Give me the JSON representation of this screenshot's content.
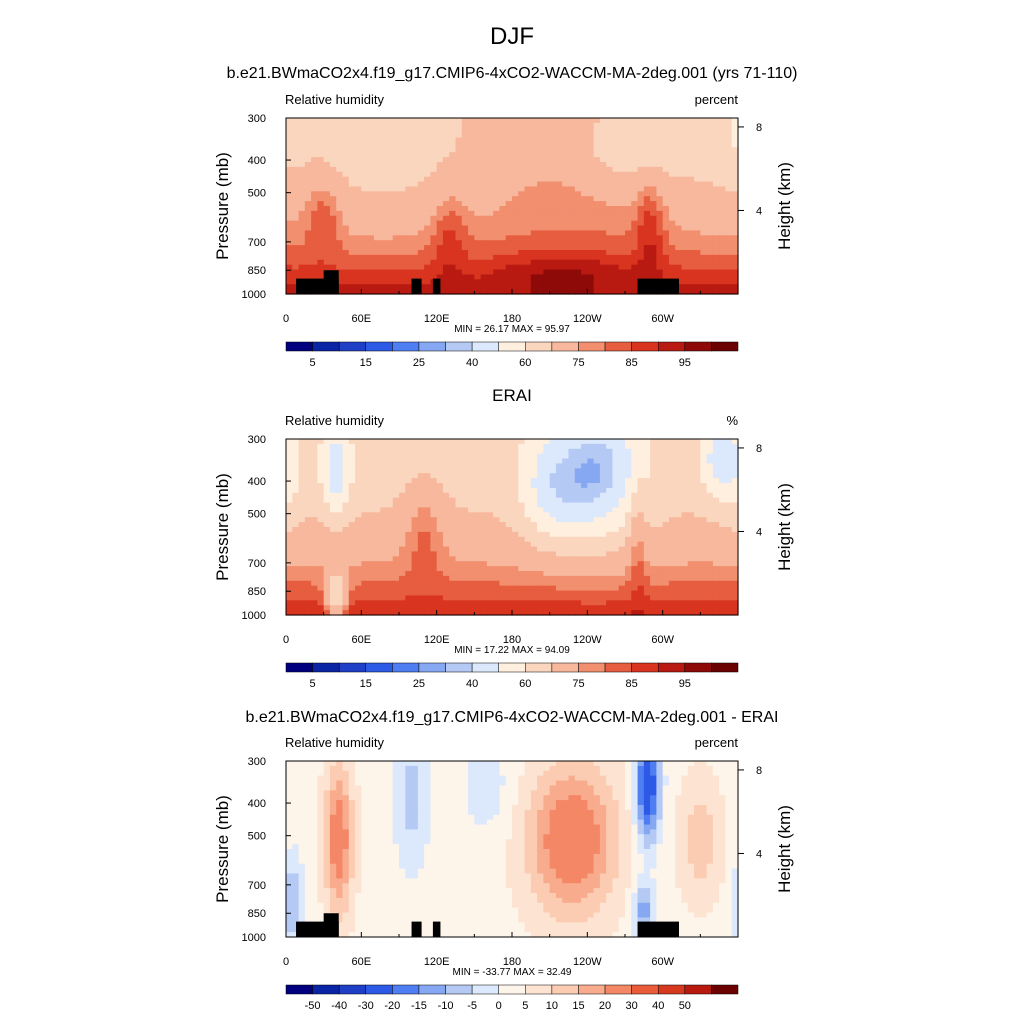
{
  "figure": {
    "title": "DJF"
  },
  "colors": {
    "rh_scale": [
      "#00007f",
      "#0a24a6",
      "#1f3fc7",
      "#2c5ae6",
      "#4f7ef2",
      "#86a8f3",
      "#b5c9f5",
      "#dce8fb",
      "#ffefdf",
      "#fbd6bf",
      "#f7b89d",
      "#f18f6f",
      "#e75d3f",
      "#d8341f",
      "#b81a12",
      "#8e0a09",
      "#6a0000"
    ],
    "diff_scale": [
      "#00007f",
      "#0a24a6",
      "#1f3fc7",
      "#2c5ae6",
      "#4f7ef2",
      "#86a8f3",
      "#b5c9f5",
      "#dce8fb",
      "#fdf4ea",
      "#fde4d2",
      "#fbcbb2",
      "#f8ab8d",
      "#f38766",
      "#ea5b3a",
      "#d53a1f",
      "#b81a10",
      "#6a0000"
    ]
  },
  "chart_data": [
    {
      "type": "heatmap",
      "id": "panel1",
      "title": "b.e21.BWmaCO2x4.f19_g17.CMIP6-4xCO2-WACCM-MA-2deg.001 (yrs 71-110)",
      "left_label": "Relative humidity",
      "right_label": "percent",
      "ylabel": "Pressure (mb)",
      "ylabel_right": "Height (km)",
      "y_ticks": [
        "300",
        "400",
        "500",
        "700",
        "850",
        "1000"
      ],
      "y_tick_values": [
        300,
        400,
        500,
        700,
        850,
        1000
      ],
      "height_ticks": [
        "8",
        "4"
      ],
      "height_tick_values": [
        8,
        4
      ],
      "x_ticks": [
        "0",
        "60E",
        "120E",
        "180",
        "120W",
        "60W"
      ],
      "x_tick_values": [
        0,
        60,
        120,
        180,
        240,
        300
      ],
      "xlim": [
        0,
        360
      ],
      "ylim": [
        1000,
        300
      ],
      "stats": "MIN =  26.17  MAX =  95.97",
      "min": 26.17,
      "max": 95.97,
      "colorbar_labels": [
        "5",
        "15",
        "25",
        "40",
        "60",
        "75",
        "85",
        "95"
      ],
      "colorbar_levels": [
        2.5,
        5,
        10,
        15,
        20,
        25,
        30,
        40,
        50,
        60,
        70,
        75,
        80,
        85,
        90,
        95
      ]
    },
    {
      "type": "heatmap",
      "id": "panel2",
      "title": "ERAI",
      "left_label": "Relative humidity",
      "right_label": "%",
      "ylabel": "Pressure (mb)",
      "ylabel_right": "Height (km)",
      "y_ticks": [
        "300",
        "400",
        "500",
        "700",
        "850",
        "1000"
      ],
      "y_tick_values": [
        300,
        400,
        500,
        700,
        850,
        1000
      ],
      "height_ticks": [
        "8",
        "4"
      ],
      "height_tick_values": [
        8,
        4
      ],
      "x_ticks": [
        "0",
        "60E",
        "120E",
        "180",
        "120W",
        "60W"
      ],
      "x_tick_values": [
        0,
        60,
        120,
        180,
        240,
        300
      ],
      "xlim": [
        0,
        360
      ],
      "ylim": [
        1000,
        300
      ],
      "stats": "MIN =  17.22  MAX =  94.09",
      "min": 17.22,
      "max": 94.09,
      "colorbar_labels": [
        "5",
        "15",
        "25",
        "40",
        "60",
        "75",
        "85",
        "95"
      ],
      "colorbar_levels": [
        2.5,
        5,
        10,
        15,
        20,
        25,
        30,
        40,
        50,
        60,
        70,
        75,
        80,
        85,
        90,
        95
      ]
    },
    {
      "type": "heatmap",
      "id": "panel3",
      "title": "b.e21.BWmaCO2x4.f19_g17.CMIP6-4xCO2-WACCM-MA-2deg.001 - ERAI",
      "left_label": "Relative humidity",
      "right_label": "percent",
      "ylabel": "Pressure (mb)",
      "ylabel_right": "Height (km)",
      "y_ticks": [
        "300",
        "400",
        "500",
        "700",
        "850",
        "1000"
      ],
      "y_tick_values": [
        300,
        400,
        500,
        700,
        850,
        1000
      ],
      "height_ticks": [
        "8",
        "4"
      ],
      "height_tick_values": [
        8,
        4
      ],
      "x_ticks": [
        "0",
        "60E",
        "120E",
        "180",
        "120W",
        "60W"
      ],
      "x_tick_values": [
        0,
        60,
        120,
        180,
        240,
        300
      ],
      "xlim": [
        0,
        360
      ],
      "ylim": [
        1000,
        300
      ],
      "stats": "MIN = -33.77  MAX =  32.49",
      "min": -33.77,
      "max": 32.49,
      "colorbar_labels": [
        "-50",
        "-40",
        "-30",
        "-20",
        "-15",
        "-10",
        "-5",
        "0",
        "5",
        "10",
        "15",
        "20",
        "30",
        "40",
        "50"
      ],
      "colorbar_levels": [
        -50,
        -40,
        -30,
        -20,
        -15,
        -10,
        -5,
        0,
        5,
        10,
        15,
        20,
        30,
        40,
        50
      ]
    }
  ]
}
